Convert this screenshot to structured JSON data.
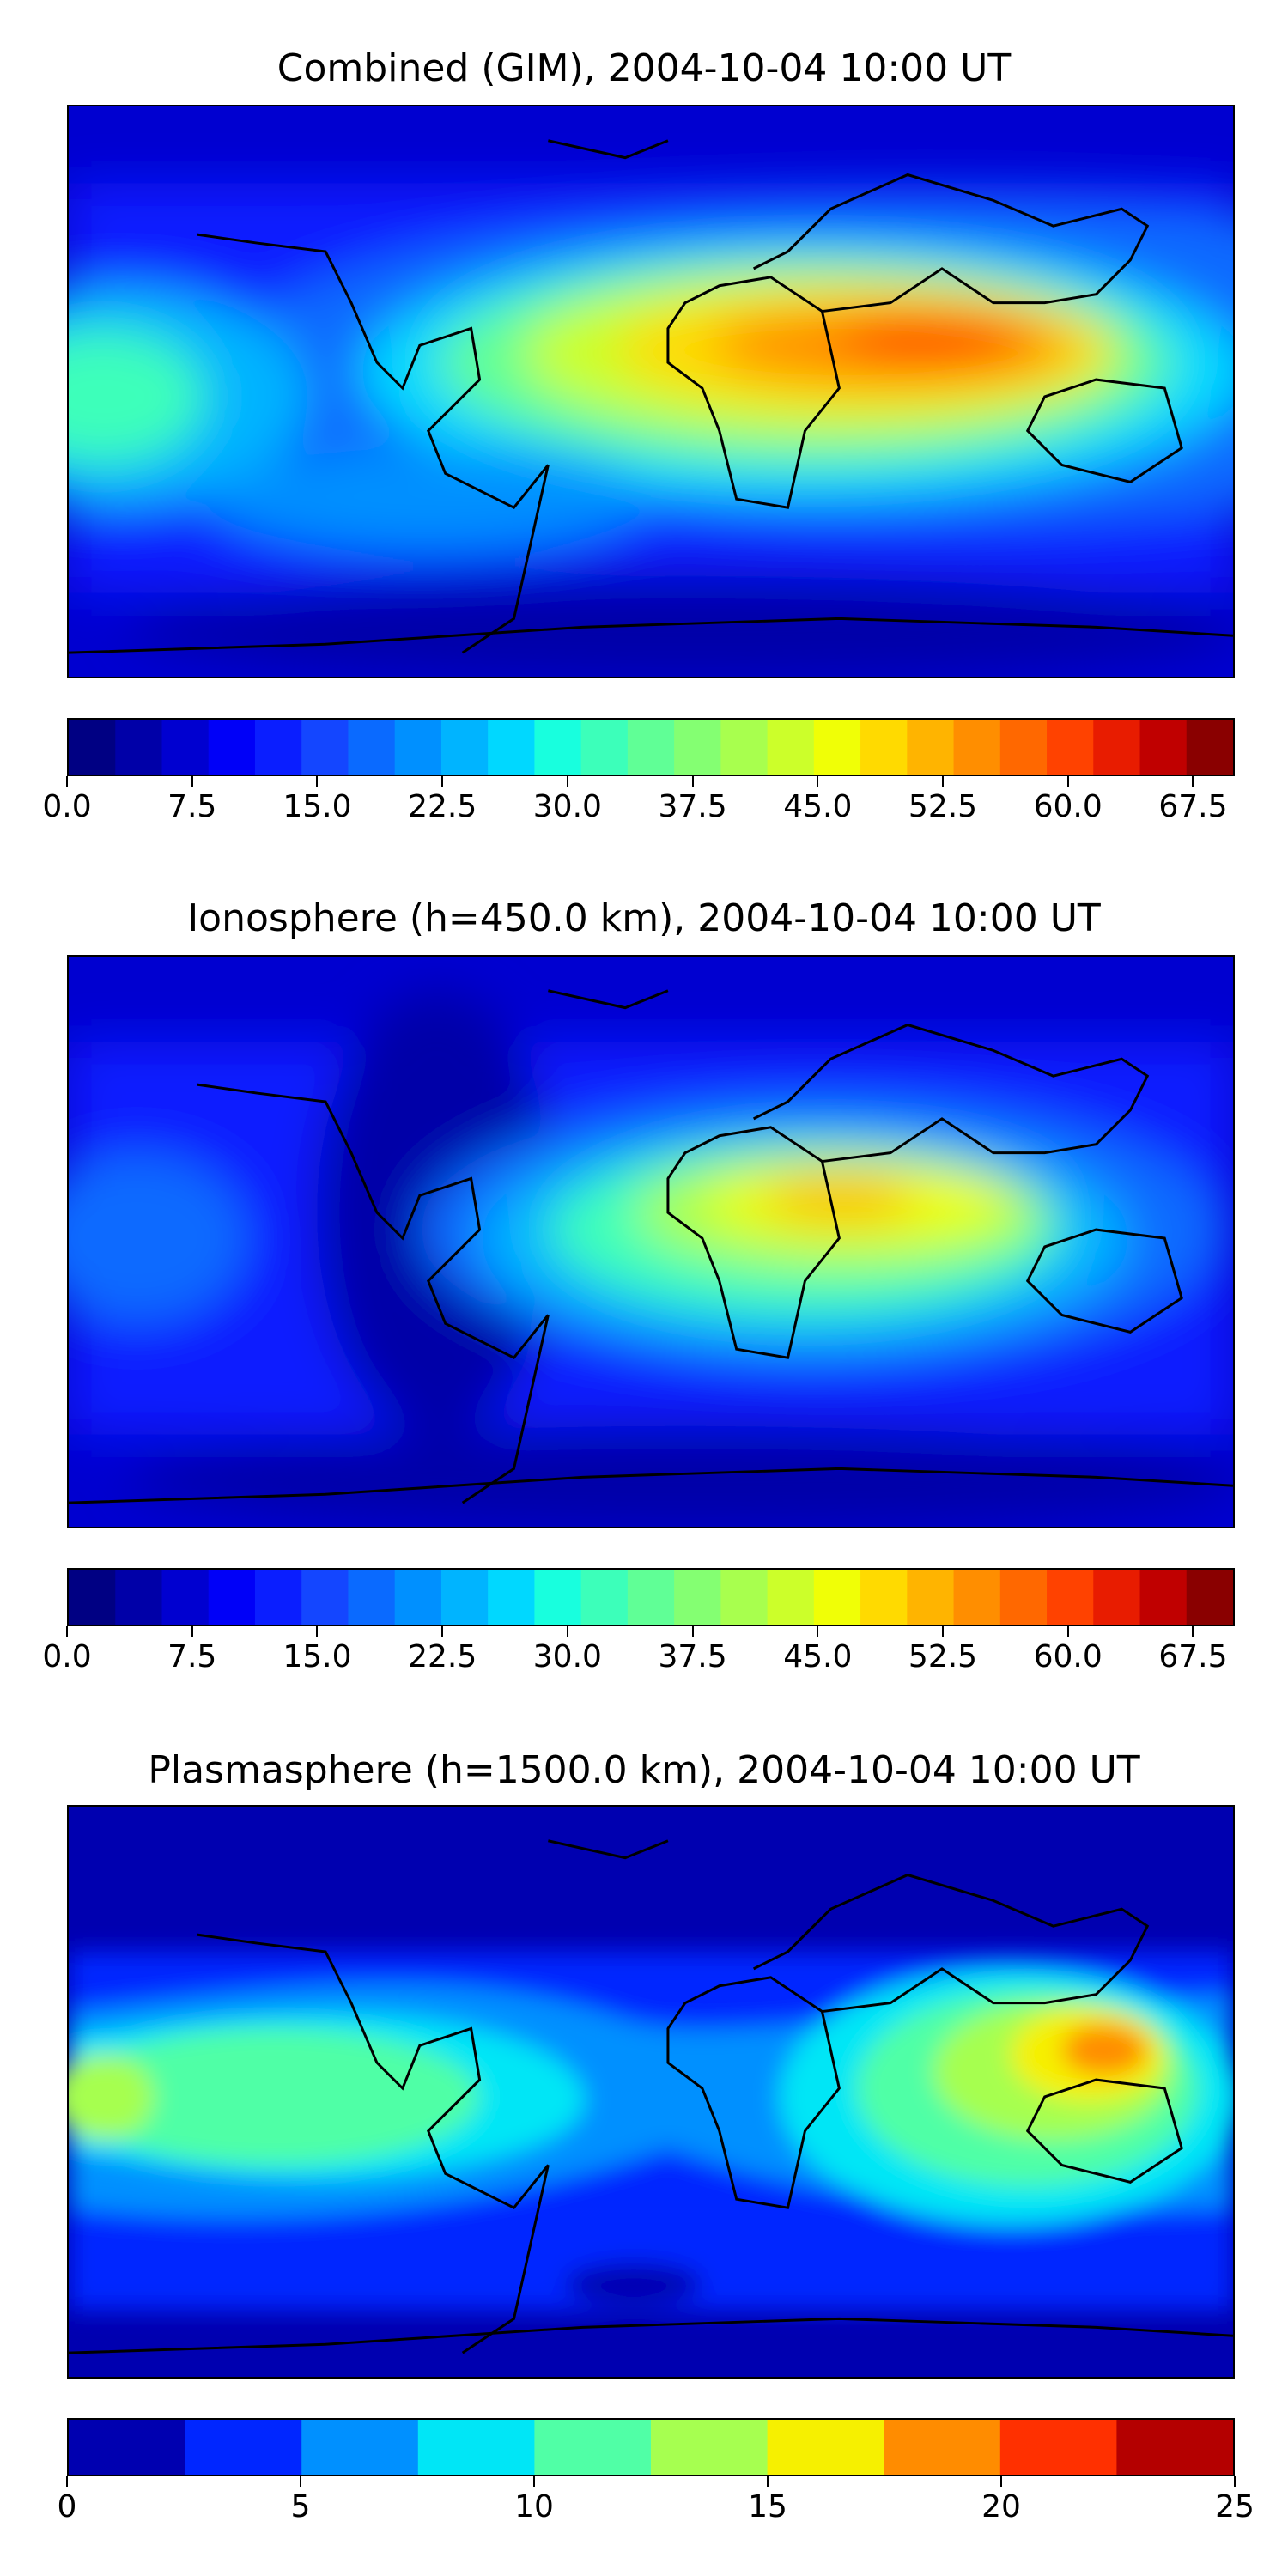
{
  "panels": [
    {
      "id": "combined",
      "title": "Combined (GIM), 2004-10-04 10:00 UT",
      "colorbar": {
        "colors": [
          "#000083",
          "#0000a8",
          "#0000d0",
          "#0000f8",
          "#0a1eff",
          "#1446ff",
          "#0a6aff",
          "#0090ff",
          "#00b4ff",
          "#00d8ff",
          "#18ffde",
          "#3cffba",
          "#60ff96",
          "#84ff72",
          "#a8ff4e",
          "#ccff2a",
          "#f0ff06",
          "#ffda00",
          "#ffb400",
          "#ff8e00",
          "#ff6800",
          "#ff4200",
          "#e81c00",
          "#c00000",
          "#8a0000"
        ],
        "tick_labels": [
          "0.0",
          "7.5",
          "15.0",
          "22.5",
          "30.0",
          "37.5",
          "45.0",
          "52.5",
          "60.0",
          "67.5"
        ],
        "tick_values": [
          0,
          7.5,
          15,
          22.5,
          30,
          37.5,
          45,
          52.5,
          60,
          67.5
        ],
        "min": 0,
        "max": 70
      }
    },
    {
      "id": "ionosphere",
      "title": "Ionosphere  (h=450.0 km), 2004-10-04 10:00 UT",
      "colorbar": {
        "colors": [
          "#000083",
          "#0000a8",
          "#0000d0",
          "#0000f8",
          "#0a1eff",
          "#1446ff",
          "#0a6aff",
          "#0090ff",
          "#00b4ff",
          "#00d8ff",
          "#18ffde",
          "#3cffba",
          "#60ff96",
          "#84ff72",
          "#a8ff4e",
          "#ccff2a",
          "#f0ff06",
          "#ffda00",
          "#ffb400",
          "#ff8e00",
          "#ff6800",
          "#ff4200",
          "#e81c00",
          "#c00000",
          "#8a0000"
        ],
        "tick_labels": [
          "0.0",
          "7.5",
          "15.0",
          "22.5",
          "30.0",
          "37.5",
          "45.0",
          "52.5",
          "60.0",
          "67.5"
        ],
        "tick_values": [
          0,
          7.5,
          15,
          22.5,
          30,
          37.5,
          45,
          52.5,
          60,
          67.5
        ],
        "min": 0,
        "max": 70
      }
    },
    {
      "id": "plasmasphere",
      "title": "Plasmasphere (h=1500.0 km), 2004-10-04 10:00 UT",
      "colorbar": {
        "colors": [
          "#0000b0",
          "#0026ff",
          "#0090ff",
          "#00e6f6",
          "#50ffa6",
          "#a6ff50",
          "#f6f000",
          "#ff8c00",
          "#ff3000",
          "#b40000"
        ],
        "tick_labels": [
          "0",
          "5",
          "10",
          "15",
          "20",
          "25"
        ],
        "tick_values": [
          0,
          5,
          10,
          15,
          20,
          25
        ],
        "min": 0,
        "max": 25
      }
    }
  ]
}
